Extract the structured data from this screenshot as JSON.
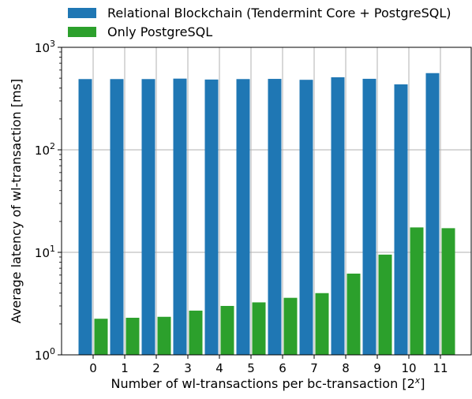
{
  "chart_data": {
    "type": "bar",
    "categories": [
      "0",
      "1",
      "2",
      "3",
      "4",
      "5",
      "6",
      "7",
      "8",
      "9",
      "10",
      "11"
    ],
    "series": [
      {
        "name": "Relational Blockchain (Tendermint Core + PostgreSQL)",
        "color": "#1f77b4",
        "values": [
          490,
          490,
          490,
          495,
          485,
          490,
          492,
          482,
          510,
          493,
          435,
          560
        ]
      },
      {
        "name": "Only PostgreSQL",
        "color": "#2ca02c",
        "values": [
          2.25,
          2.3,
          2.35,
          2.7,
          3.0,
          3.25,
          3.6,
          4.0,
          6.2,
          9.5,
          17.5,
          17.2
        ]
      }
    ],
    "xlabel": "Number of wl-transactions per bc-transaction [2^x]",
    "xlabel_main": "Number of wl-transactions per bc-transaction [2",
    "xlabel_sup": "x",
    "xlabel_end": "]",
    "ylabel": "Average latency of wl-transaction [ms]",
    "yscale": "log",
    "ylim": [
      1,
      1000
    ],
    "yticks": [
      {
        "value": 1,
        "base": "10",
        "exp": "0"
      },
      {
        "value": 10,
        "base": "10",
        "exp": "1"
      },
      {
        "value": 100,
        "base": "10",
        "exp": "2"
      },
      {
        "value": 1000,
        "base": "10",
        "exp": "3"
      }
    ],
    "grid": true,
    "legend_position": "top (outside plot)"
  }
}
